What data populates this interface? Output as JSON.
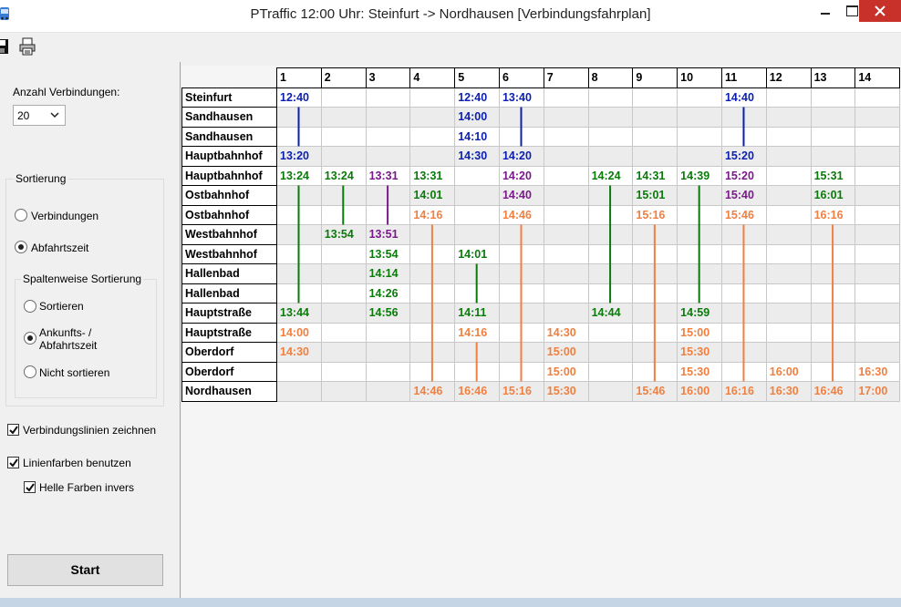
{
  "window": {
    "title": "PTraffic  12:00 Uhr: Steinfurt -> Nordhausen  [Verbindungsfahrplan]",
    "close_color": "#c7312a"
  },
  "toolbar": {
    "save_icon": "floppy-disk-icon",
    "print_icon": "printer-icon"
  },
  "settings": {
    "count_label": "Anzahl Verbindungen:",
    "count_value": "20",
    "sort_group_label": "Sortierung",
    "sort_option_connections": "Verbindungen",
    "sort_option_departure": "Abfahrtszeit",
    "column_sort_group_label": "Spaltenweise Sortierung",
    "column_sort_option_sort": "Sortieren",
    "column_sort_option_arrival_line1": "Ankunfts- /",
    "column_sort_option_arrival_line2": "Abfahrtszeit",
    "column_sort_option_none": "Nicht sortieren",
    "draw_lines_label": "Verbindungslinien zeichnen",
    "draw_lines_checked": true,
    "line_colors_label": "Linienfarben benutzen",
    "line_colors_checked": true,
    "invert_light_label": "Helle Farben invers",
    "invert_light_checked": true,
    "start_label": "Start",
    "selected_sort": "Abfahrtszeit",
    "selected_column_sort": "Ankunfts- / Abfahrtszeit"
  },
  "colors": {
    "blue": "#0b1fb0",
    "green": "#0a7a0a",
    "purple": "#7a1a8a",
    "orange": "#f08040"
  },
  "grid": {
    "columns": [
      "1",
      "2",
      "3",
      "4",
      "5",
      "6",
      "7",
      "8",
      "9",
      "10",
      "11",
      "12",
      "13",
      "14"
    ],
    "stations": [
      "Steinfurt",
      "Sandhausen",
      "Sandhausen",
      "Hauptbahnhof",
      "Hauptbahnhof",
      "Ostbahnhof",
      "Ostbahnhof",
      "Westbahnhof",
      "Westbahnhof",
      "Hallenbad",
      "Hallenbad",
      "Hauptstraße",
      "Hauptstraße",
      "Oberdorf",
      "Oberdorf",
      "Nordhausen"
    ],
    "cells": [
      [
        {
          "t": "12:40",
          "c": "blue"
        },
        null,
        null,
        null,
        {
          "t": "12:40",
          "c": "blue"
        },
        {
          "t": "13:40",
          "c": "blue"
        },
        null,
        null,
        null,
        null,
        {
          "t": "14:40",
          "c": "blue"
        },
        null,
        null,
        null
      ],
      [
        null,
        null,
        null,
        null,
        {
          "t": "14:00",
          "c": "blue"
        },
        null,
        null,
        null,
        null,
        null,
        null,
        null,
        null,
        null
      ],
      [
        null,
        null,
        null,
        null,
        {
          "t": "14:10",
          "c": "blue"
        },
        null,
        null,
        null,
        null,
        null,
        null,
        null,
        null,
        null
      ],
      [
        {
          "t": "13:20",
          "c": "blue"
        },
        null,
        null,
        null,
        {
          "t": "14:30",
          "c": "blue"
        },
        {
          "t": "14:20",
          "c": "blue"
        },
        null,
        null,
        null,
        null,
        {
          "t": "15:20",
          "c": "blue"
        },
        null,
        null,
        null
      ],
      [
        {
          "t": "13:24",
          "c": "green"
        },
        {
          "t": "13:24",
          "c": "green"
        },
        {
          "t": "13:31",
          "c": "purple"
        },
        {
          "t": "13:31",
          "c": "green"
        },
        null,
        {
          "t": "14:20",
          "c": "purple"
        },
        null,
        {
          "t": "14:24",
          "c": "green"
        },
        {
          "t": "14:31",
          "c": "green"
        },
        {
          "t": "14:39",
          "c": "green"
        },
        {
          "t": "15:20",
          "c": "purple"
        },
        null,
        {
          "t": "15:31",
          "c": "green"
        },
        null
      ],
      [
        null,
        null,
        null,
        {
          "t": "14:01",
          "c": "green"
        },
        null,
        {
          "t": "14:40",
          "c": "purple"
        },
        null,
        null,
        {
          "t": "15:01",
          "c": "green"
        },
        null,
        {
          "t": "15:40",
          "c": "purple"
        },
        null,
        {
          "t": "16:01",
          "c": "green"
        },
        null
      ],
      [
        null,
        null,
        null,
        {
          "t": "14:16",
          "c": "orange"
        },
        null,
        {
          "t": "14:46",
          "c": "orange"
        },
        null,
        null,
        {
          "t": "15:16",
          "c": "orange"
        },
        null,
        {
          "t": "15:46",
          "c": "orange"
        },
        null,
        {
          "t": "16:16",
          "c": "orange"
        },
        null
      ],
      [
        null,
        {
          "t": "13:54",
          "c": "green"
        },
        {
          "t": "13:51",
          "c": "purple"
        },
        null,
        null,
        null,
        null,
        null,
        null,
        null,
        null,
        null,
        null,
        null
      ],
      [
        null,
        null,
        {
          "t": "13:54",
          "c": "green"
        },
        null,
        {
          "t": "14:01",
          "c": "green"
        },
        null,
        null,
        null,
        null,
        null,
        null,
        null,
        null,
        null
      ],
      [
        null,
        null,
        {
          "t": "14:14",
          "c": "green"
        },
        null,
        null,
        null,
        null,
        null,
        null,
        null,
        null,
        null,
        null,
        null
      ],
      [
        null,
        null,
        {
          "t": "14:26",
          "c": "green"
        },
        null,
        null,
        null,
        null,
        null,
        null,
        null,
        null,
        null,
        null,
        null
      ],
      [
        {
          "t": "13:44",
          "c": "green"
        },
        null,
        {
          "t": "14:56",
          "c": "green"
        },
        null,
        {
          "t": "14:11",
          "c": "green"
        },
        null,
        null,
        {
          "t": "14:44",
          "c": "green"
        },
        null,
        {
          "t": "14:59",
          "c": "green"
        },
        null,
        null,
        null,
        null
      ],
      [
        {
          "t": "14:00",
          "c": "orange"
        },
        null,
        null,
        null,
        {
          "t": "14:16",
          "c": "orange"
        },
        null,
        {
          "t": "14:30",
          "c": "orange"
        },
        null,
        null,
        {
          "t": "15:00",
          "c": "orange"
        },
        null,
        null,
        null,
        null
      ],
      [
        {
          "t": "14:30",
          "c": "orange"
        },
        null,
        null,
        null,
        null,
        null,
        {
          "t": "15:00",
          "c": "orange"
        },
        null,
        null,
        {
          "t": "15:30",
          "c": "orange"
        },
        null,
        null,
        null,
        null
      ],
      [
        null,
        null,
        null,
        null,
        null,
        null,
        {
          "t": "15:00",
          "c": "orange"
        },
        null,
        null,
        {
          "t": "15:30",
          "c": "orange"
        },
        null,
        {
          "t": "16:00",
          "c": "orange"
        },
        null,
        {
          "t": "16:30",
          "c": "orange"
        }
      ],
      [
        null,
        null,
        null,
        {
          "t": "14:46",
          "c": "orange"
        },
        {
          "t": "16:46",
          "c": "orange"
        },
        {
          "t": "15:16",
          "c": "orange"
        },
        {
          "t": "15:30",
          "c": "orange"
        },
        null,
        {
          "t": "15:46",
          "c": "orange"
        },
        {
          "t": "16:00",
          "c": "orange"
        },
        {
          "t": "16:16",
          "c": "orange"
        },
        {
          "t": "16:30",
          "c": "orange"
        },
        {
          "t": "16:46",
          "c": "orange"
        },
        {
          "t": "17:00",
          "c": "orange"
        }
      ]
    ],
    "lines": [
      {
        "col": 0,
        "from": 0,
        "to": 3,
        "c": "blue"
      },
      {
        "col": 0,
        "from": 4,
        "to": 11,
        "c": "green"
      },
      {
        "col": 1,
        "from": 4,
        "to": 7,
        "c": "green"
      },
      {
        "col": 2,
        "from": 4,
        "to": 7,
        "c": "purple"
      },
      {
        "col": 3,
        "from": 6,
        "to": 15,
        "c": "orange"
      },
      {
        "col": 4,
        "from": 8,
        "to": 11,
        "c": "green"
      },
      {
        "col": 4,
        "from": 12,
        "to": 15,
        "c": "orange"
      },
      {
        "col": 5,
        "from": 0,
        "to": 3,
        "c": "blue"
      },
      {
        "col": 5,
        "from": 6,
        "to": 15,
        "c": "orange"
      },
      {
        "col": 7,
        "from": 4,
        "to": 11,
        "c": "green"
      },
      {
        "col": 8,
        "from": 6,
        "to": 15,
        "c": "orange"
      },
      {
        "col": 9,
        "from": 4,
        "to": 11,
        "c": "green"
      },
      {
        "col": 10,
        "from": 0,
        "to": 3,
        "c": "blue"
      },
      {
        "col": 10,
        "from": 6,
        "to": 15,
        "c": "orange"
      },
      {
        "col": 12,
        "from": 6,
        "to": 15,
        "c": "orange"
      }
    ]
  }
}
